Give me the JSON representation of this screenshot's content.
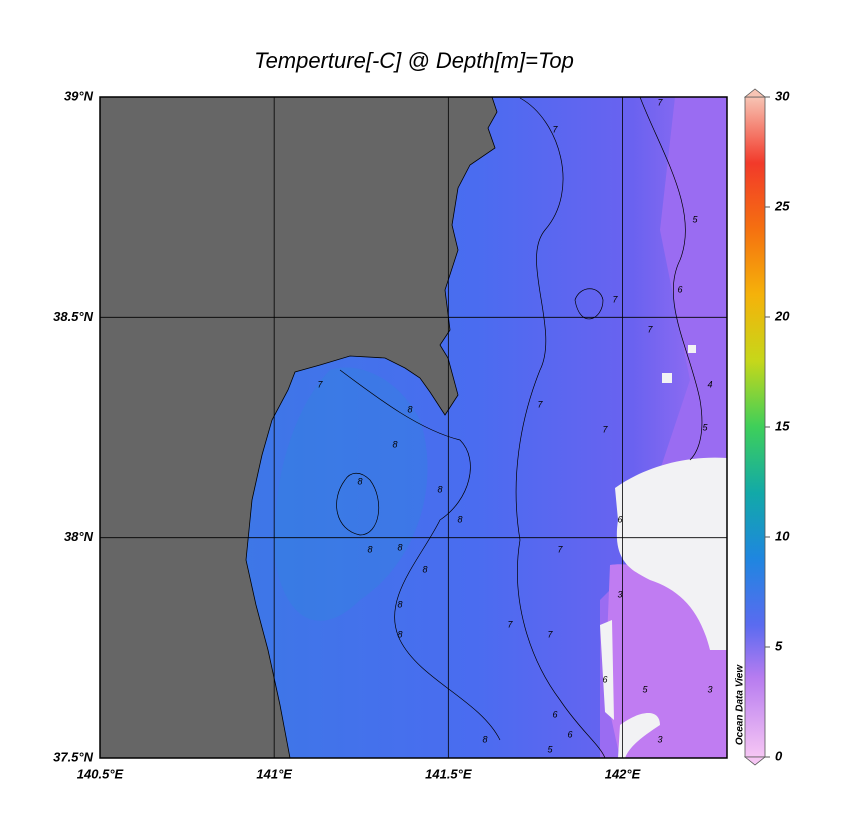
{
  "map": {
    "title": "Temperture[-C] @ Depth[m]=Top",
    "lonlim": [
      140.5,
      142.3
    ],
    "latlim": [
      37.5,
      39
    ],
    "lon_ticks": [
      {
        "value": 140.5,
        "label": "140.5°E"
      },
      {
        "value": 141,
        "label": "141°E"
      },
      {
        "value": 141.5,
        "label": "141.5°E"
      },
      {
        "value": 142,
        "label": "142°E"
      }
    ],
    "lat_ticks": [
      {
        "value": 39,
        "label": "39°N"
      },
      {
        "value": 38.5,
        "label": "38.5°N"
      },
      {
        "value": 38,
        "label": "38°N"
      },
      {
        "value": 37.5,
        "label": "37.5°N"
      }
    ],
    "grid": true,
    "colorbar": {
      "lim": [
        0,
        30
      ],
      "ticks": [
        0,
        5,
        10,
        15,
        20,
        25,
        30
      ],
      "label": "Ocean Data View"
    },
    "contour_labels": [
      7,
      7,
      5,
      6,
      7,
      7,
      4,
      5,
      7,
      7,
      7,
      8,
      8,
      8,
      8,
      8,
      8,
      8,
      8,
      8,
      8,
      8,
      7,
      7,
      7,
      6,
      6,
      6,
      3,
      5,
      3,
      3,
      5,
      6
    ]
  }
}
